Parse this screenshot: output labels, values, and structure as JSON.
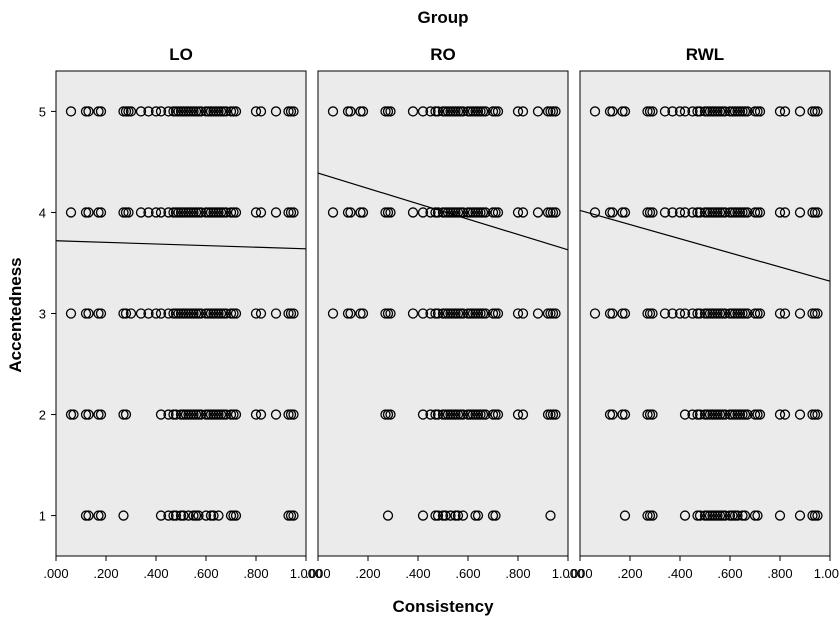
{
  "chart_data": {
    "type": "scatter",
    "title": "Group",
    "xlabel": "Consistency",
    "ylabel": "Accentedness",
    "xlim": [
      0,
      1
    ],
    "ylim": [
      0.6,
      5.4
    ],
    "x_ticks": [
      ".000",
      ".200",
      ".400",
      ".600",
      ".800",
      "1.000"
    ],
    "x_tick_values": [
      0,
      0.2,
      0.4,
      0.6,
      0.8,
      1.0
    ],
    "y_ticks": [
      "1",
      "2",
      "3",
      "4",
      "5"
    ],
    "y_tick_values": [
      1,
      2,
      3,
      4,
      5
    ],
    "grid": false,
    "panel_background": "#ebebeb",
    "marker_color": "#000000",
    "fit_line_color": "#000000",
    "panels": [
      {
        "name": "LO",
        "fit_line": {
          "x": [
            0,
            1
          ],
          "y": [
            3.72,
            3.64
          ]
        },
        "points": {
          "5": [
            0.06,
            0.12,
            0.13,
            0.17,
            0.18,
            0.27,
            0.28,
            0.29,
            0.3,
            0.34,
            0.37,
            0.4,
            0.42,
            0.45,
            0.47,
            0.48,
            0.49,
            0.5,
            0.51,
            0.52,
            0.53,
            0.54,
            0.55,
            0.56,
            0.57,
            0.58,
            0.6,
            0.61,
            0.62,
            0.63,
            0.64,
            0.65,
            0.66,
            0.67,
            0.68,
            0.7,
            0.71,
            0.72,
            0.8,
            0.82,
            0.88,
            0.93,
            0.94,
            0.95
          ],
          "4": [
            0.06,
            0.12,
            0.13,
            0.17,
            0.18,
            0.27,
            0.28,
            0.29,
            0.34,
            0.37,
            0.4,
            0.42,
            0.45,
            0.47,
            0.48,
            0.49,
            0.5,
            0.51,
            0.52,
            0.53,
            0.54,
            0.55,
            0.56,
            0.57,
            0.58,
            0.6,
            0.61,
            0.62,
            0.63,
            0.64,
            0.65,
            0.66,
            0.67,
            0.68,
            0.7,
            0.71,
            0.72,
            0.8,
            0.82,
            0.88,
            0.93,
            0.94,
            0.95
          ],
          "3": [
            0.06,
            0.12,
            0.13,
            0.17,
            0.18,
            0.27,
            0.28,
            0.3,
            0.34,
            0.37,
            0.4,
            0.42,
            0.45,
            0.47,
            0.48,
            0.49,
            0.5,
            0.51,
            0.52,
            0.53,
            0.54,
            0.55,
            0.56,
            0.57,
            0.58,
            0.6,
            0.61,
            0.62,
            0.63,
            0.64,
            0.65,
            0.66,
            0.67,
            0.68,
            0.7,
            0.71,
            0.72,
            0.8,
            0.82,
            0.88,
            0.93,
            0.94,
            0.95
          ],
          "2": [
            0.06,
            0.07,
            0.12,
            0.13,
            0.17,
            0.18,
            0.27,
            0.28,
            0.42,
            0.45,
            0.47,
            0.48,
            0.5,
            0.51,
            0.52,
            0.53,
            0.54,
            0.55,
            0.56,
            0.57,
            0.58,
            0.6,
            0.61,
            0.62,
            0.63,
            0.64,
            0.65,
            0.66,
            0.67,
            0.68,
            0.7,
            0.71,
            0.72,
            0.8,
            0.82,
            0.88,
            0.93,
            0.94,
            0.95
          ],
          "1": [
            0.12,
            0.13,
            0.17,
            0.18,
            0.27,
            0.42,
            0.45,
            0.47,
            0.48,
            0.5,
            0.51,
            0.53,
            0.55,
            0.56,
            0.57,
            0.6,
            0.62,
            0.63,
            0.65,
            0.7,
            0.71,
            0.72,
            0.93,
            0.94,
            0.95
          ]
        }
      },
      {
        "name": "RO",
        "fit_line": {
          "x": [
            0,
            1
          ],
          "y": [
            4.39,
            3.63
          ]
        },
        "points": {
          "5": [
            0.06,
            0.12,
            0.13,
            0.17,
            0.18,
            0.27,
            0.28,
            0.29,
            0.38,
            0.42,
            0.45,
            0.47,
            0.48,
            0.5,
            0.51,
            0.52,
            0.53,
            0.54,
            0.55,
            0.56,
            0.57,
            0.58,
            0.6,
            0.61,
            0.62,
            0.63,
            0.64,
            0.65,
            0.66,
            0.67,
            0.7,
            0.71,
            0.72,
            0.8,
            0.82,
            0.88,
            0.92,
            0.93,
            0.94,
            0.95
          ],
          "4": [
            0.06,
            0.12,
            0.13,
            0.17,
            0.18,
            0.27,
            0.28,
            0.29,
            0.38,
            0.42,
            0.45,
            0.47,
            0.48,
            0.5,
            0.51,
            0.52,
            0.53,
            0.54,
            0.55,
            0.56,
            0.57,
            0.58,
            0.6,
            0.61,
            0.62,
            0.63,
            0.64,
            0.65,
            0.66,
            0.67,
            0.7,
            0.71,
            0.72,
            0.8,
            0.82,
            0.88,
            0.92,
            0.93,
            0.94,
            0.95
          ],
          "3": [
            0.06,
            0.12,
            0.13,
            0.17,
            0.18,
            0.27,
            0.28,
            0.29,
            0.38,
            0.42,
            0.45,
            0.47,
            0.48,
            0.5,
            0.51,
            0.52,
            0.53,
            0.54,
            0.55,
            0.56,
            0.57,
            0.58,
            0.6,
            0.61,
            0.62,
            0.63,
            0.64,
            0.65,
            0.66,
            0.67,
            0.7,
            0.71,
            0.72,
            0.8,
            0.82,
            0.88,
            0.92,
            0.93,
            0.94,
            0.95
          ],
          "2": [
            0.27,
            0.28,
            0.29,
            0.42,
            0.45,
            0.47,
            0.48,
            0.5,
            0.51,
            0.52,
            0.53,
            0.54,
            0.55,
            0.56,
            0.57,
            0.58,
            0.6,
            0.61,
            0.62,
            0.63,
            0.64,
            0.65,
            0.66,
            0.67,
            0.7,
            0.71,
            0.72,
            0.8,
            0.82,
            0.92,
            0.93,
            0.94,
            0.95
          ],
          "1": [
            0.28,
            0.42,
            0.47,
            0.48,
            0.5,
            0.51,
            0.53,
            0.55,
            0.56,
            0.58,
            0.63,
            0.64,
            0.7,
            0.71,
            0.93
          ]
        }
      },
      {
        "name": "RWL",
        "fit_line": {
          "x": [
            0,
            1
          ],
          "y": [
            4.02,
            3.32
          ]
        },
        "points": {
          "5": [
            0.06,
            0.12,
            0.13,
            0.17,
            0.18,
            0.27,
            0.28,
            0.29,
            0.34,
            0.37,
            0.4,
            0.42,
            0.45,
            0.47,
            0.48,
            0.5,
            0.51,
            0.52,
            0.53,
            0.54,
            0.55,
            0.56,
            0.57,
            0.58,
            0.6,
            0.61,
            0.62,
            0.63,
            0.64,
            0.65,
            0.66,
            0.67,
            0.7,
            0.71,
            0.72,
            0.8,
            0.82,
            0.88,
            0.93,
            0.94,
            0.95
          ],
          "4": [
            0.06,
            0.12,
            0.13,
            0.17,
            0.18,
            0.27,
            0.28,
            0.29,
            0.34,
            0.37,
            0.4,
            0.42,
            0.45,
            0.47,
            0.48,
            0.5,
            0.51,
            0.52,
            0.53,
            0.54,
            0.55,
            0.56,
            0.57,
            0.58,
            0.6,
            0.61,
            0.62,
            0.63,
            0.64,
            0.65,
            0.66,
            0.67,
            0.7,
            0.71,
            0.72,
            0.8,
            0.82,
            0.88,
            0.93,
            0.94,
            0.95
          ],
          "3": [
            0.06,
            0.12,
            0.13,
            0.17,
            0.18,
            0.27,
            0.28,
            0.29,
            0.34,
            0.37,
            0.4,
            0.42,
            0.45,
            0.47,
            0.48,
            0.5,
            0.51,
            0.52,
            0.53,
            0.54,
            0.55,
            0.56,
            0.57,
            0.58,
            0.6,
            0.61,
            0.62,
            0.63,
            0.64,
            0.65,
            0.66,
            0.67,
            0.7,
            0.71,
            0.72,
            0.8,
            0.82,
            0.88,
            0.93,
            0.94,
            0.95
          ],
          "2": [
            0.12,
            0.13,
            0.17,
            0.18,
            0.27,
            0.28,
            0.29,
            0.42,
            0.45,
            0.47,
            0.48,
            0.5,
            0.51,
            0.52,
            0.53,
            0.54,
            0.55,
            0.56,
            0.57,
            0.58,
            0.6,
            0.61,
            0.62,
            0.63,
            0.64,
            0.65,
            0.66,
            0.67,
            0.7,
            0.71,
            0.72,
            0.8,
            0.82,
            0.88,
            0.93,
            0.94,
            0.95
          ],
          "1": [
            0.18,
            0.27,
            0.28,
            0.29,
            0.42,
            0.47,
            0.48,
            0.5,
            0.51,
            0.52,
            0.53,
            0.54,
            0.55,
            0.56,
            0.57,
            0.58,
            0.6,
            0.61,
            0.62,
            0.63,
            0.65,
            0.66,
            0.7,
            0.71,
            0.8,
            0.88,
            0.93,
            0.94,
            0.95
          ]
        }
      }
    ]
  }
}
